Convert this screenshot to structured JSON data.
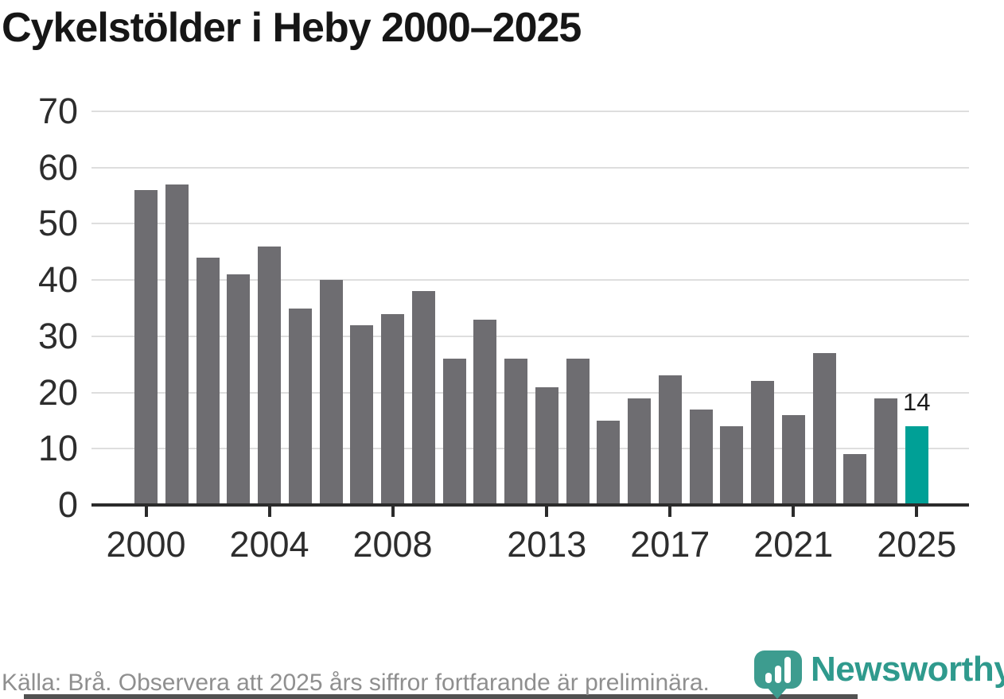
{
  "title": "Cykelstölder i Heby 2000–2025",
  "chart_data": {
    "type": "bar",
    "categories": [
      2000,
      2001,
      2002,
      2003,
      2004,
      2005,
      2006,
      2007,
      2008,
      2009,
      2010,
      2011,
      2012,
      2013,
      2014,
      2015,
      2016,
      2017,
      2018,
      2019,
      2020,
      2021,
      2022,
      2023,
      2024,
      2025
    ],
    "values": [
      56,
      57,
      44,
      41,
      46,
      35,
      40,
      32,
      34,
      38,
      26,
      33,
      26,
      21,
      26,
      15,
      19,
      23,
      17,
      14,
      22,
      16,
      27,
      9,
      19,
      14
    ],
    "title": "Cykelstölder i Heby 2000–2025",
    "xlabel": "",
    "ylabel": "",
    "ylim": [
      0,
      70
    ],
    "yticks": [
      0,
      10,
      20,
      30,
      40,
      50,
      60,
      70
    ],
    "xticks": [
      2000,
      2004,
      2008,
      2013,
      2017,
      2021,
      2025
    ],
    "grid": true,
    "legend": "none",
    "bar_color": "#6e6d71",
    "highlight_year": 2025,
    "highlight_color": "#00a096",
    "annotation": {
      "year": 2025,
      "label": "14"
    }
  },
  "footer": {
    "source_text": "Källa: Brå. Observera att 2025 års siffror fortfarande är preliminära."
  },
  "logo": {
    "text": "Newsworthy",
    "badge_color": "#3d9c8f",
    "text_color": "#2f9a8d",
    "icon": "bar-chart-pin-icon"
  }
}
